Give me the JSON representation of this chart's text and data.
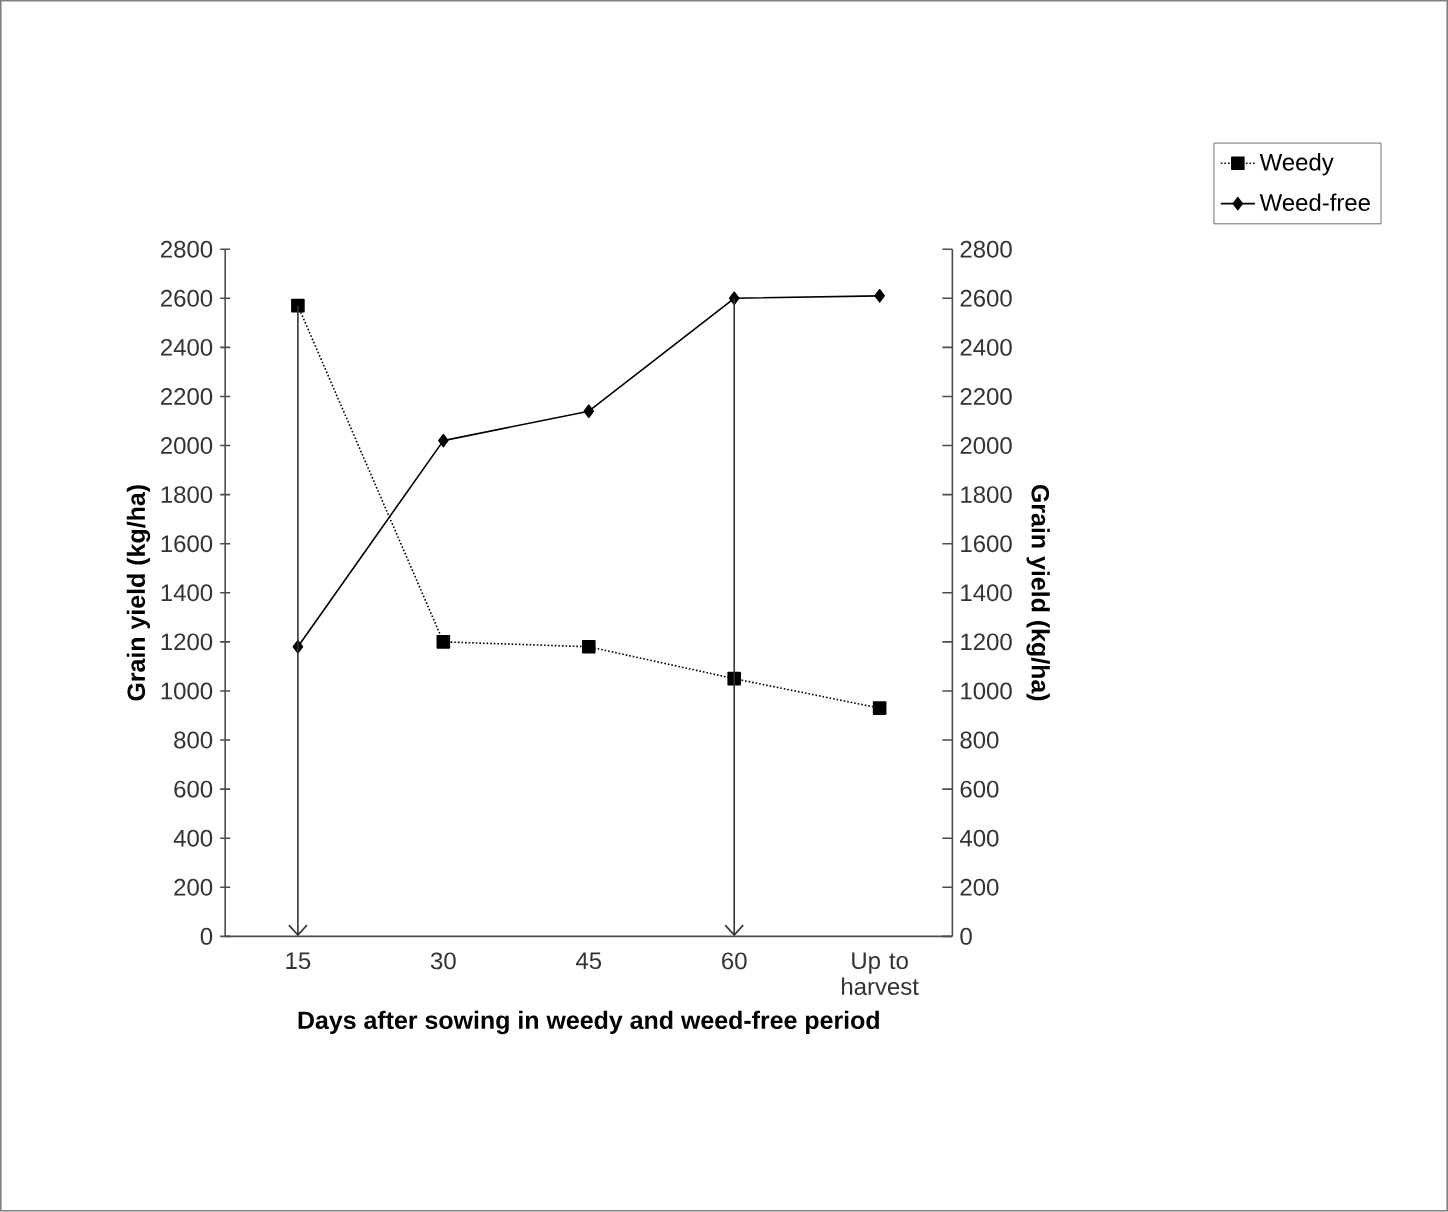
{
  "chart_data": {
    "type": "line",
    "categories": [
      "15",
      "30",
      "45",
      "60",
      "Up to harvest"
    ],
    "xlabel": "Days after sowing in weedy and weed-free period",
    "ylabel": "Grain yield (kg/ha)",
    "y2label": "Grain yield (kg/ha)",
    "ylim": [
      0,
      2800
    ],
    "yticks": [
      0,
      200,
      400,
      600,
      800,
      1000,
      1200,
      1400,
      1600,
      1800,
      2000,
      2200,
      2400,
      2600,
      2800
    ],
    "y2lim": [
      0,
      2800
    ],
    "y2ticks": [
      0,
      200,
      400,
      600,
      800,
      1000,
      1200,
      1400,
      1600,
      1800,
      2000,
      2200,
      2400,
      2600,
      2800
    ],
    "series": [
      {
        "name": "Weedy",
        "color": "#000000",
        "marker": "square",
        "line_style": "dotted",
        "values": [
          2570,
          1200,
          1180,
          1050,
          930
        ]
      },
      {
        "name": "Weed-free",
        "color": "#000000",
        "marker": "diamond",
        "line_style": "solid",
        "values": [
          1180,
          2020,
          2140,
          2600,
          2610
        ]
      }
    ],
    "legend": "top right"
  }
}
